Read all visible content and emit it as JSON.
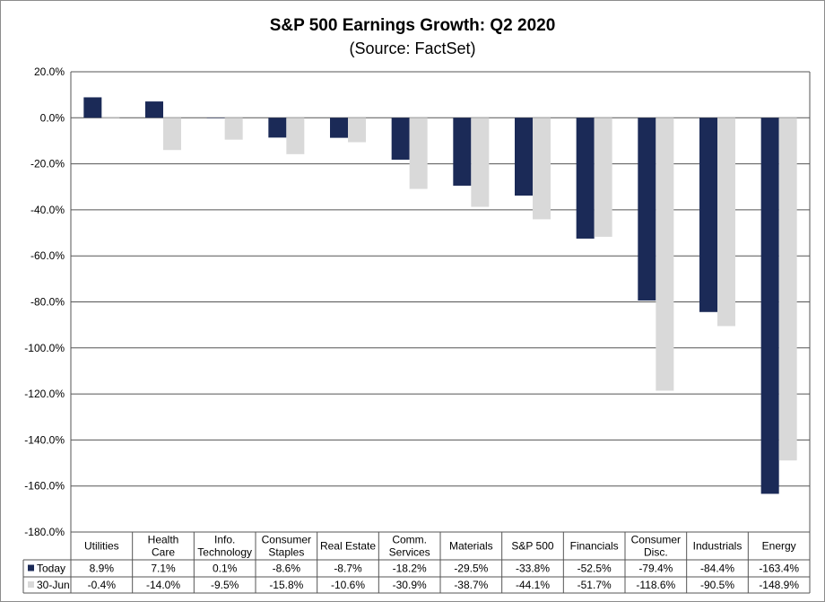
{
  "chart_data": {
    "type": "bar",
    "title": "S&P 500 Earnings Growth: Q2 2020",
    "subtitle": "(Source: FactSet)",
    "categories": [
      "Utilities",
      "Health Care",
      "Info. Technology",
      "Consumer Staples",
      "Real Estate",
      "Comm. Services",
      "Materials",
      "S&P 500",
      "Financials",
      "Consumer Disc.",
      "Industrials",
      "Energy"
    ],
    "category_lines": [
      [
        "Utilities"
      ],
      [
        "Health",
        "Care"
      ],
      [
        "Info.",
        "Technology"
      ],
      [
        "Consumer",
        "Staples"
      ],
      [
        "Real Estate"
      ],
      [
        "Comm.",
        "Services"
      ],
      [
        "Materials"
      ],
      [
        "S&P 500"
      ],
      [
        "Financials"
      ],
      [
        "Consumer",
        "Disc."
      ],
      [
        "Industrials"
      ],
      [
        "Energy"
      ]
    ],
    "series": [
      {
        "name": "Today",
        "color": "#1b2a57",
        "values": [
          8.9,
          7.1,
          0.1,
          -8.6,
          -8.7,
          -18.2,
          -29.5,
          -33.8,
          -52.5,
          -79.4,
          -84.4,
          -163.4
        ],
        "labels": [
          "8.9%",
          "7.1%",
          "0.1%",
          "-8.6%",
          "-8.7%",
          "-18.2%",
          "-29.5%",
          "-33.8%",
          "-52.5%",
          "-79.4%",
          "-84.4%",
          "-163.4%"
        ]
      },
      {
        "name": "30-Jun",
        "color": "#d9d9d9",
        "values": [
          -0.4,
          -14.0,
          -9.5,
          -15.8,
          -10.6,
          -30.9,
          -38.7,
          -44.1,
          -51.7,
          -118.6,
          -90.5,
          -148.9
        ],
        "labels": [
          "-0.4%",
          "-14.0%",
          "-9.5%",
          "-15.8%",
          "-10.6%",
          "-30.9%",
          "-38.7%",
          "-44.1%",
          "-51.7%",
          "-118.6%",
          "-90.5%",
          "-148.9%"
        ]
      }
    ],
    "ylim": [
      -180,
      20
    ],
    "yticks": [
      20,
      0,
      -20,
      -40,
      -60,
      -80,
      -100,
      -120,
      -140,
      -160,
      -180
    ],
    "ytick_labels": [
      "20.0%",
      "0.0%",
      "-20.0%",
      "-40.0%",
      "-60.0%",
      "-80.0%",
      "-100.0%",
      "-120.0%",
      "-140.0%",
      "-160.0%",
      "-180.0%"
    ],
    "grid": true,
    "legend": "data-table"
  }
}
